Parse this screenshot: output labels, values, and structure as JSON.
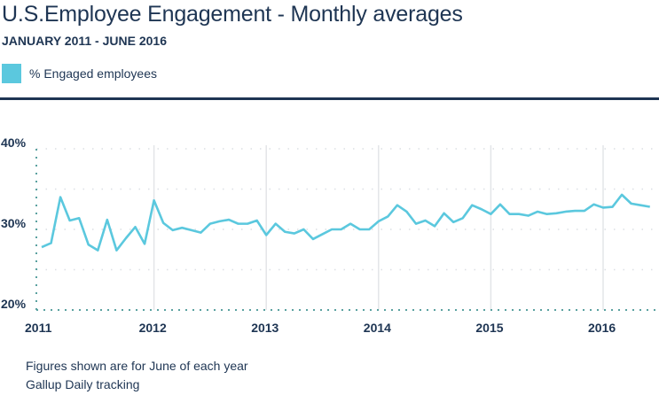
{
  "header": {
    "title": "U.S.Employee Engagement - Monthly averages",
    "subtitle": "JANUARY 2011 - JUNE 2016"
  },
  "footer": {
    "note1": "Figures shown are for June of each year",
    "note2": "Gallup Daily tracking"
  },
  "colors": {
    "series": "#5bc8de",
    "text": "#1e3553",
    "axis": "#5aa1a0",
    "grid": "#dcdfe4"
  },
  "chart_data": {
    "type": "line",
    "title": "U.S.Employee Engagement - Monthly averages",
    "xlabel": "",
    "ylabel": "",
    "ylim": [
      20,
      40
    ],
    "yticks": [
      "20%",
      "30%",
      "40%"
    ],
    "xticks": [
      "2011",
      "2012",
      "2013",
      "2014",
      "2015",
      "2016"
    ],
    "legend": "top-left",
    "grid": true,
    "start": "2011-01",
    "end": "2016-06",
    "frequency": "monthly",
    "series": [
      {
        "name": "% Engaged employees",
        "values": [
          27.8,
          28.3,
          34.0,
          31.1,
          31.4,
          28.1,
          27.4,
          31.2,
          27.4,
          28.9,
          30.3,
          28.2,
          33.6,
          30.8,
          29.9,
          30.2,
          29.9,
          29.6,
          30.7,
          31.0,
          31.2,
          30.7,
          30.7,
          31.1,
          29.3,
          30.7,
          29.7,
          29.5,
          30.0,
          28.8,
          29.4,
          30.0,
          30.0,
          30.7,
          30.0,
          30.0,
          31.0,
          31.6,
          33.0,
          32.2,
          30.7,
          31.1,
          30.4,
          32.0,
          30.9,
          31.4,
          33.0,
          32.5,
          31.9,
          33.1,
          31.9,
          31.9,
          31.7,
          32.2,
          31.9,
          32.0,
          32.2,
          32.3,
          32.3,
          33.1,
          32.7,
          32.8,
          34.3,
          33.2,
          33.0,
          32.8
        ]
      }
    ]
  }
}
